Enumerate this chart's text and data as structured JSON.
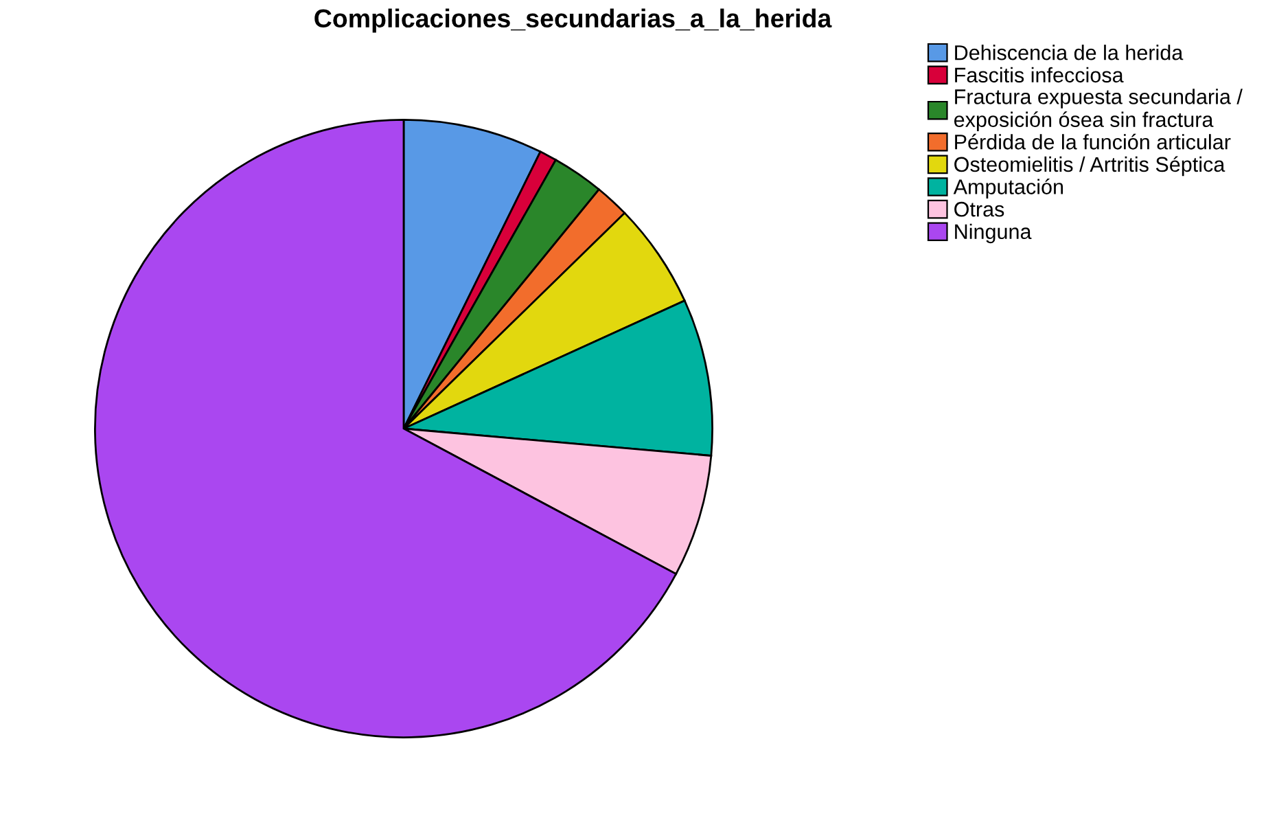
{
  "chart_data": {
    "type": "pie",
    "title": "Complicaciones_secundarias_a_la_herida",
    "categories": [
      "Dehiscencia de la herida",
      "Fascitis infecciosa",
      "Fractura expuesta secundaria / exposición ósea sin fractura",
      "Pérdida de la función articular",
      "Osteomielitis / Artritis Séptica",
      "Amputación",
      "Otras",
      "Ninguna"
    ],
    "values": [
      7.3,
      0.9,
      2.7,
      1.8,
      5.5,
      8.2,
      6.4,
      67.2
    ],
    "colors": [
      "#5899e6",
      "#d8003a",
      "#2a862a",
      "#f26d2c",
      "#e2d80e",
      "#00b3a0",
      "#fdc3e0",
      "#aa47f0"
    ],
    "legend": "top right"
  }
}
